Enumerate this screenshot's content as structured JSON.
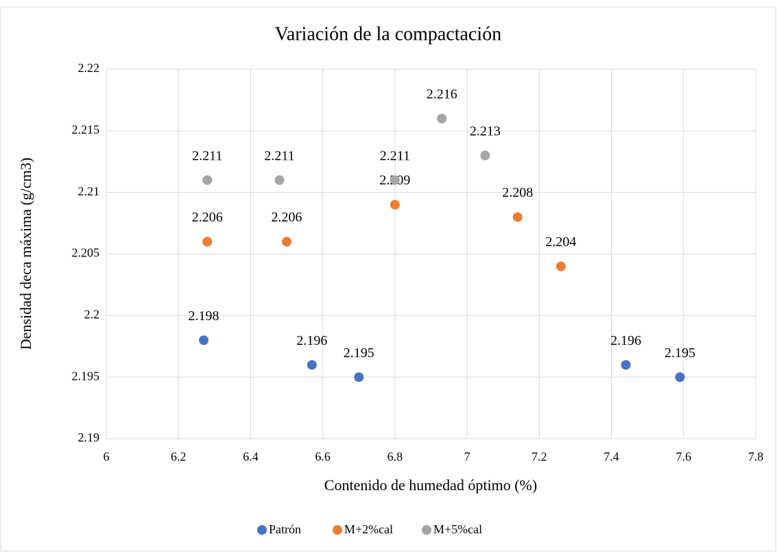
{
  "chart_data": {
    "type": "scatter",
    "title": "Variación de la compactación",
    "x_label": "Contenido de humedad óptimo (%)",
    "y_label": "Densidad deca máxima (g/cm3)",
    "xlim": [
      6,
      7.8
    ],
    "xticks": [
      6,
      6.2,
      6.4,
      6.6,
      6.8,
      7,
      7.2,
      7.4,
      7.6,
      7.8
    ],
    "ylim": [
      2.19,
      2.22
    ],
    "yticks": [
      2.19,
      2.195,
      2.2,
      2.205,
      2.21,
      2.215,
      2.22
    ],
    "grid": true,
    "legend": "bottom",
    "series": [
      {
        "name": "Patrón",
        "color": "#4472c4",
        "x": [
          6.27,
          6.57,
          6.7,
          7.44,
          7.59
        ],
        "values": [
          2.198,
          2.196,
          2.195,
          2.196,
          2.195
        ]
      },
      {
        "name": "M+2%cal",
        "color": "#ed7d31",
        "x": [
          6.28,
          6.5,
          6.8,
          7.14,
          7.26
        ],
        "values": [
          2.206,
          2.206,
          2.209,
          2.208,
          2.204
        ]
      },
      {
        "name": "M+5%cal",
        "color": "#a5a5a5",
        "x": [
          6.28,
          6.48,
          6.8,
          6.93,
          7.05
        ],
        "values": [
          2.211,
          2.211,
          2.211,
          2.216,
          2.213
        ]
      }
    ]
  }
}
